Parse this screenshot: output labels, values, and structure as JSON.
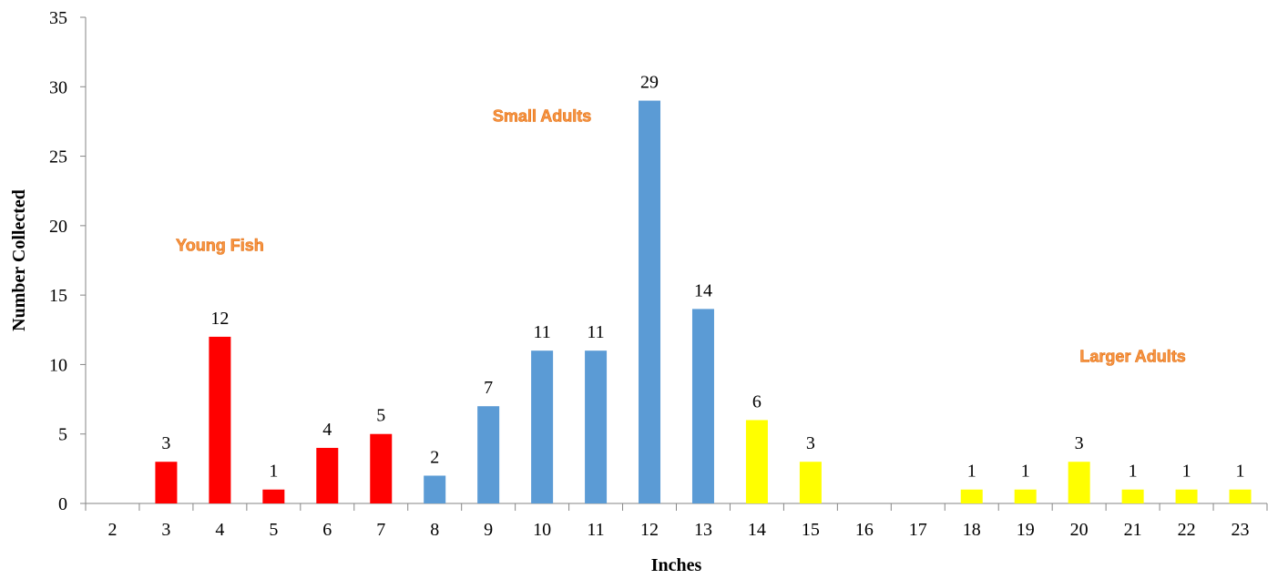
{
  "chart_data": {
    "type": "bar",
    "categories": [
      "2",
      "3",
      "4",
      "5",
      "6",
      "7",
      "8",
      "9",
      "10",
      "11",
      "12",
      "13",
      "14",
      "15",
      "16",
      "17",
      "18",
      "19",
      "20",
      "21",
      "22",
      "23"
    ],
    "values": [
      0,
      3,
      12,
      1,
      4,
      5,
      2,
      7,
      11,
      11,
      29,
      14,
      6,
      3,
      0,
      0,
      1,
      1,
      3,
      1,
      1,
      1
    ],
    "data_labels": [
      "",
      "3",
      "12",
      "1",
      "4",
      "5",
      "2",
      "7",
      "11",
      "11",
      "29",
      "14",
      "6",
      "3",
      "",
      "",
      "1",
      "1",
      "3",
      "1",
      "1",
      "1"
    ],
    "bar_colors": [
      "#FF0000",
      "#FF0000",
      "#FF0000",
      "#FF0000",
      "#FF0000",
      "#FF0000",
      "#5B9BD5",
      "#5B9BD5",
      "#5B9BD5",
      "#5B9BD5",
      "#5B9BD5",
      "#5B9BD5",
      "#FFFF00",
      "#FFFF00",
      "#FFFF00",
      "#FFFF00",
      "#FFFF00",
      "#FFFF00",
      "#FFFF00",
      "#FFFF00",
      "#FFFF00",
      "#FFFF00"
    ],
    "xlabel": "Inches",
    "ylabel": "Number Collected",
    "ylim": [
      0,
      35
    ],
    "yticks": [
      "0",
      "5",
      "10",
      "15",
      "20",
      "25",
      "30",
      "35"
    ],
    "grid": false,
    "annotations": [
      {
        "text": "Young Fish",
        "near_category": "4",
        "at_value": 18.2
      },
      {
        "text": "Small Adults",
        "near_category": "10",
        "at_value": 27.5
      },
      {
        "text": "Larger Adults",
        "near_category": "21",
        "at_value": 10.2
      }
    ],
    "annotation_color": "#F79646"
  }
}
